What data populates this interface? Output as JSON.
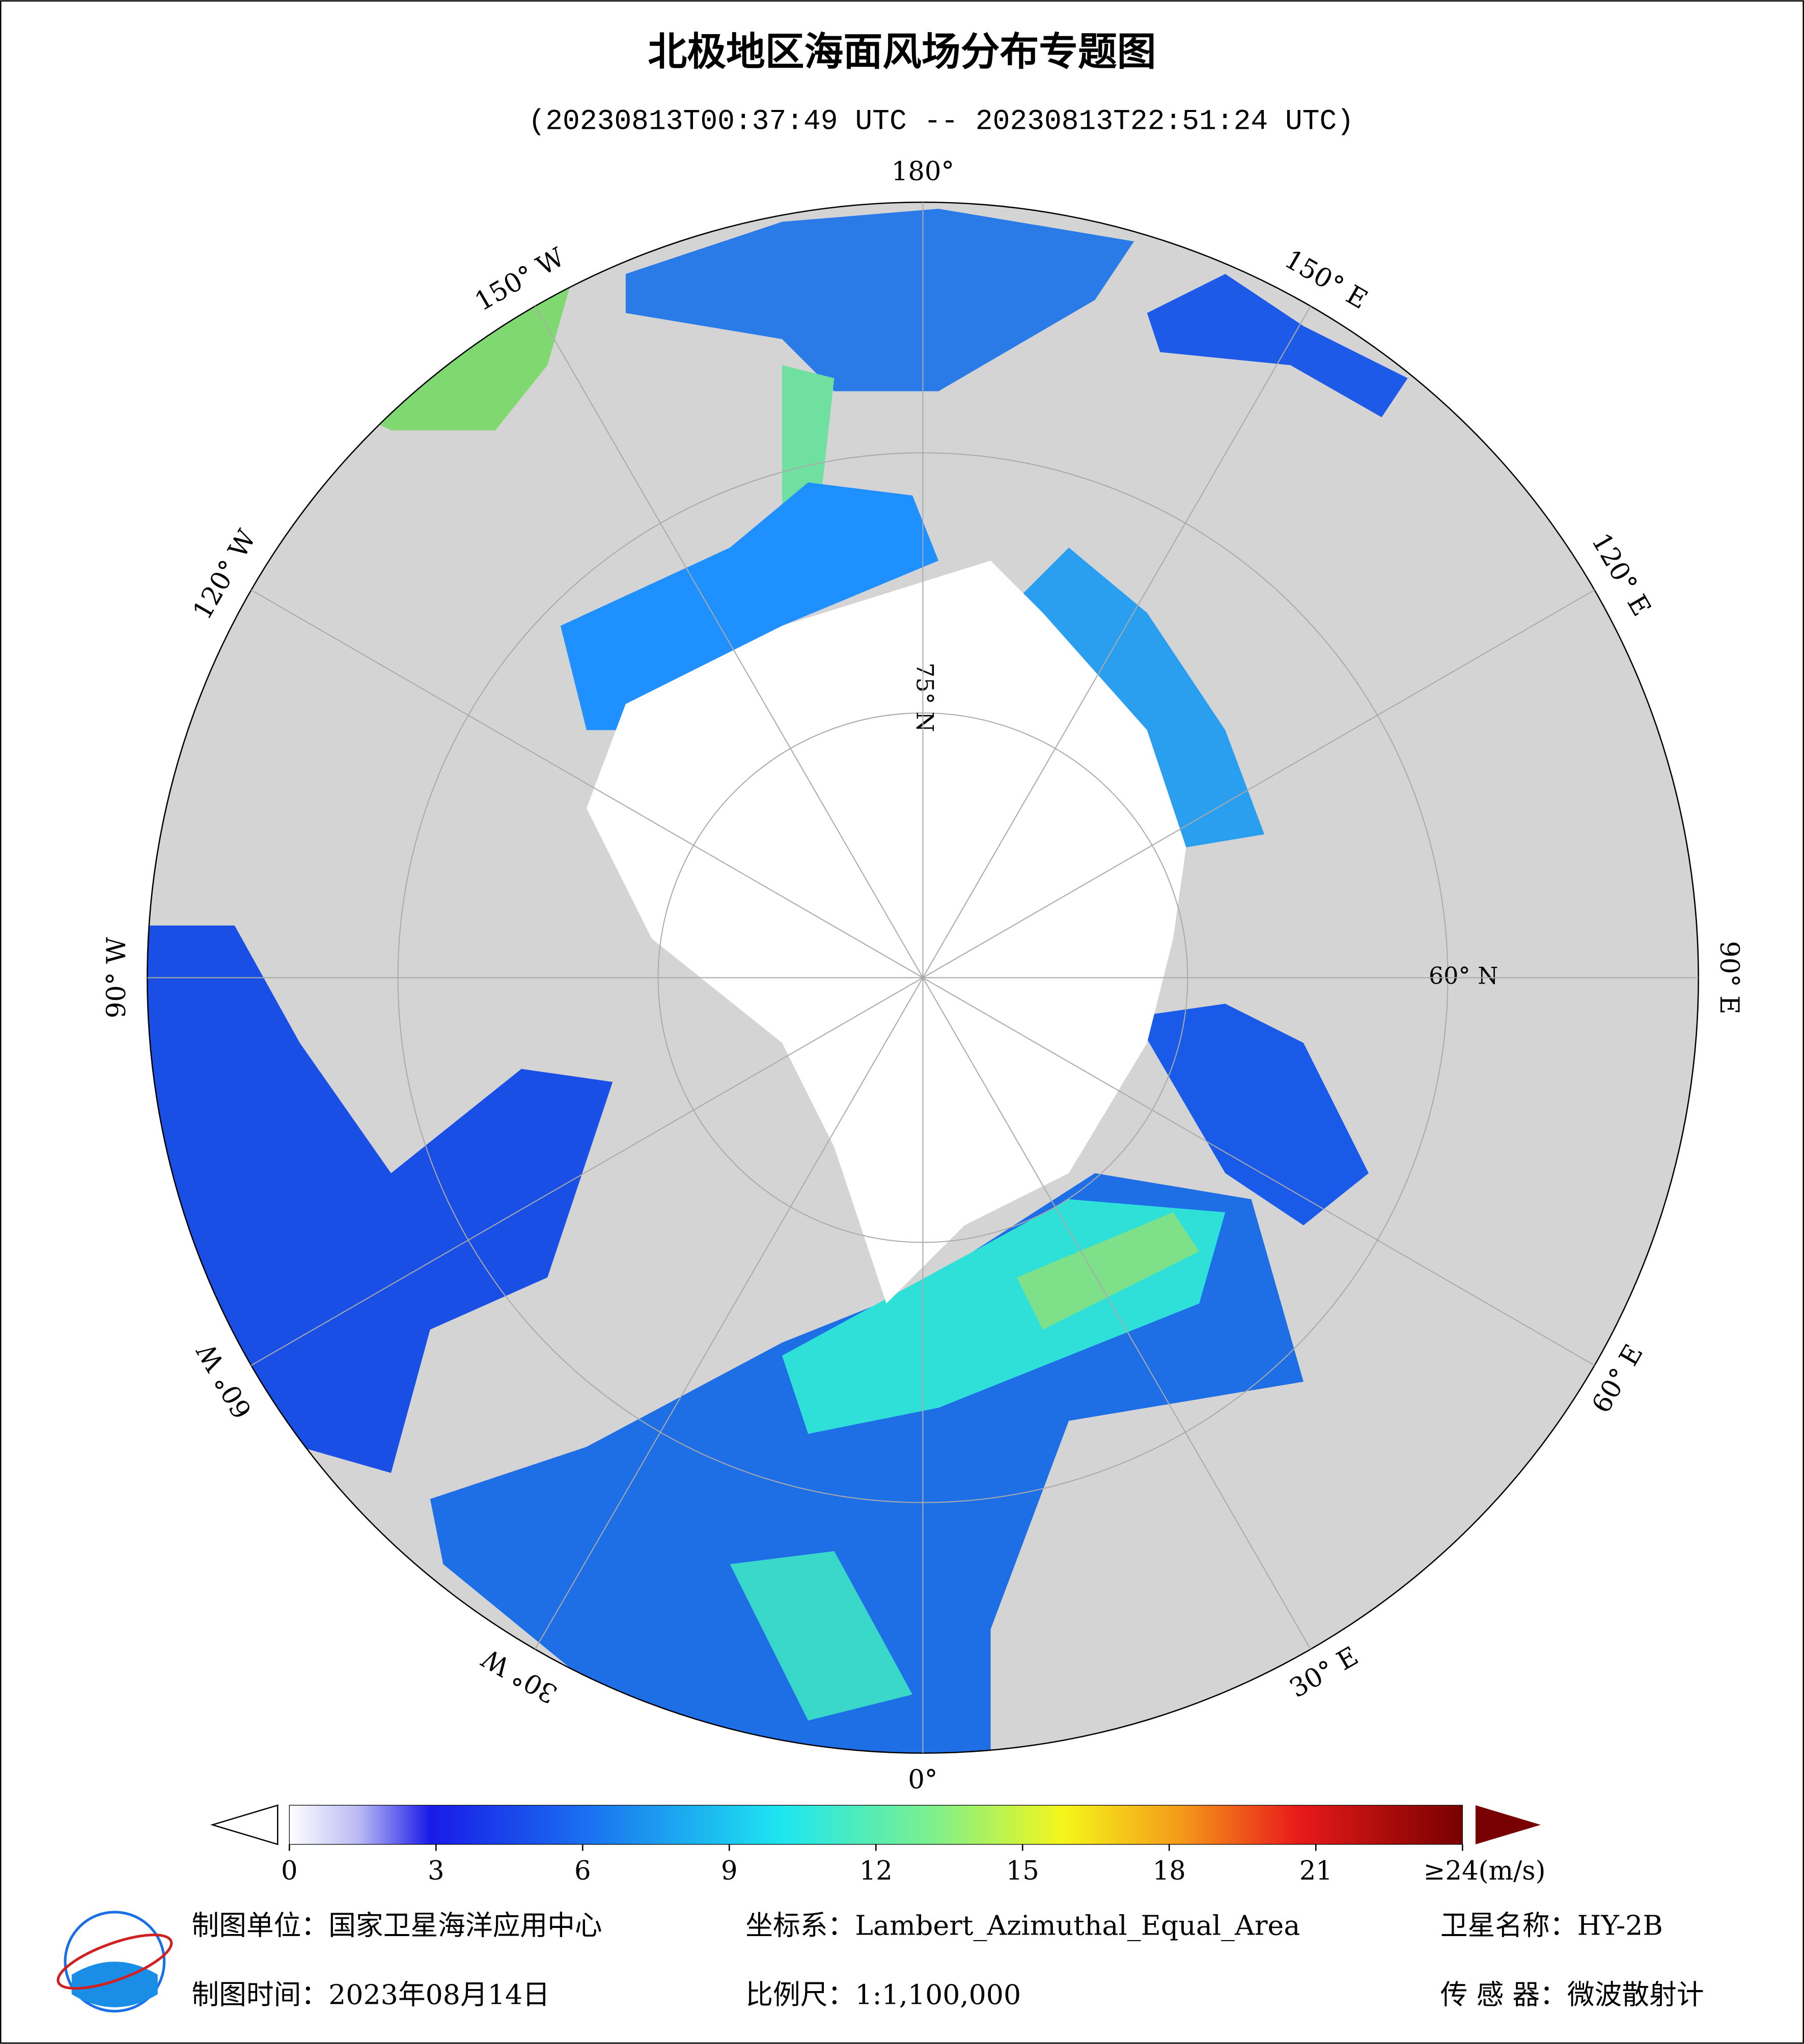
{
  "header": {
    "title": "北极地区海面风场分布专题图",
    "subtitle": "(20230813T00:37:49 UTC -- 20230813T22:51:24 UTC)"
  },
  "map": {
    "meridians": [
      {
        "value": 180,
        "label": "180°"
      },
      {
        "value": 150,
        "label": "150° E"
      },
      {
        "value": 120,
        "label": "120° E"
      },
      {
        "value": 90,
        "label": "90° E"
      },
      {
        "value": 60,
        "label": "60° E"
      },
      {
        "value": 30,
        "label": "30° E"
      },
      {
        "value": 0,
        "label": "0°"
      },
      {
        "value": -30,
        "label": "30° W"
      },
      {
        "value": -60,
        "label": "60° W"
      },
      {
        "value": -90,
        "label": "90° W"
      },
      {
        "value": -120,
        "label": "120° W"
      },
      {
        "value": -150,
        "label": "150° W"
      }
    ],
    "parallels": [
      {
        "value": 75,
        "label": "75° N"
      },
      {
        "value": 60,
        "label": "60° N"
      }
    ]
  },
  "colorbar": {
    "lim": [
      0,
      24
    ],
    "ticks": [
      0,
      3,
      6,
      9,
      12,
      15,
      18,
      21,
      {
        "value": 24,
        "label": "≥24(m/s)"
      }
    ]
  },
  "footer": {
    "producer": "制图单位：国家卫星海洋应用中心",
    "crs": "坐标系：Lambert_Azimuthal_Equal_Area",
    "satellite": "卫星名称：HY-2B",
    "date": "制图时间：2023年08月14日",
    "scale": "比例尺：1:1,100,000",
    "sensor": "传 感 器：微波散射计"
  }
}
